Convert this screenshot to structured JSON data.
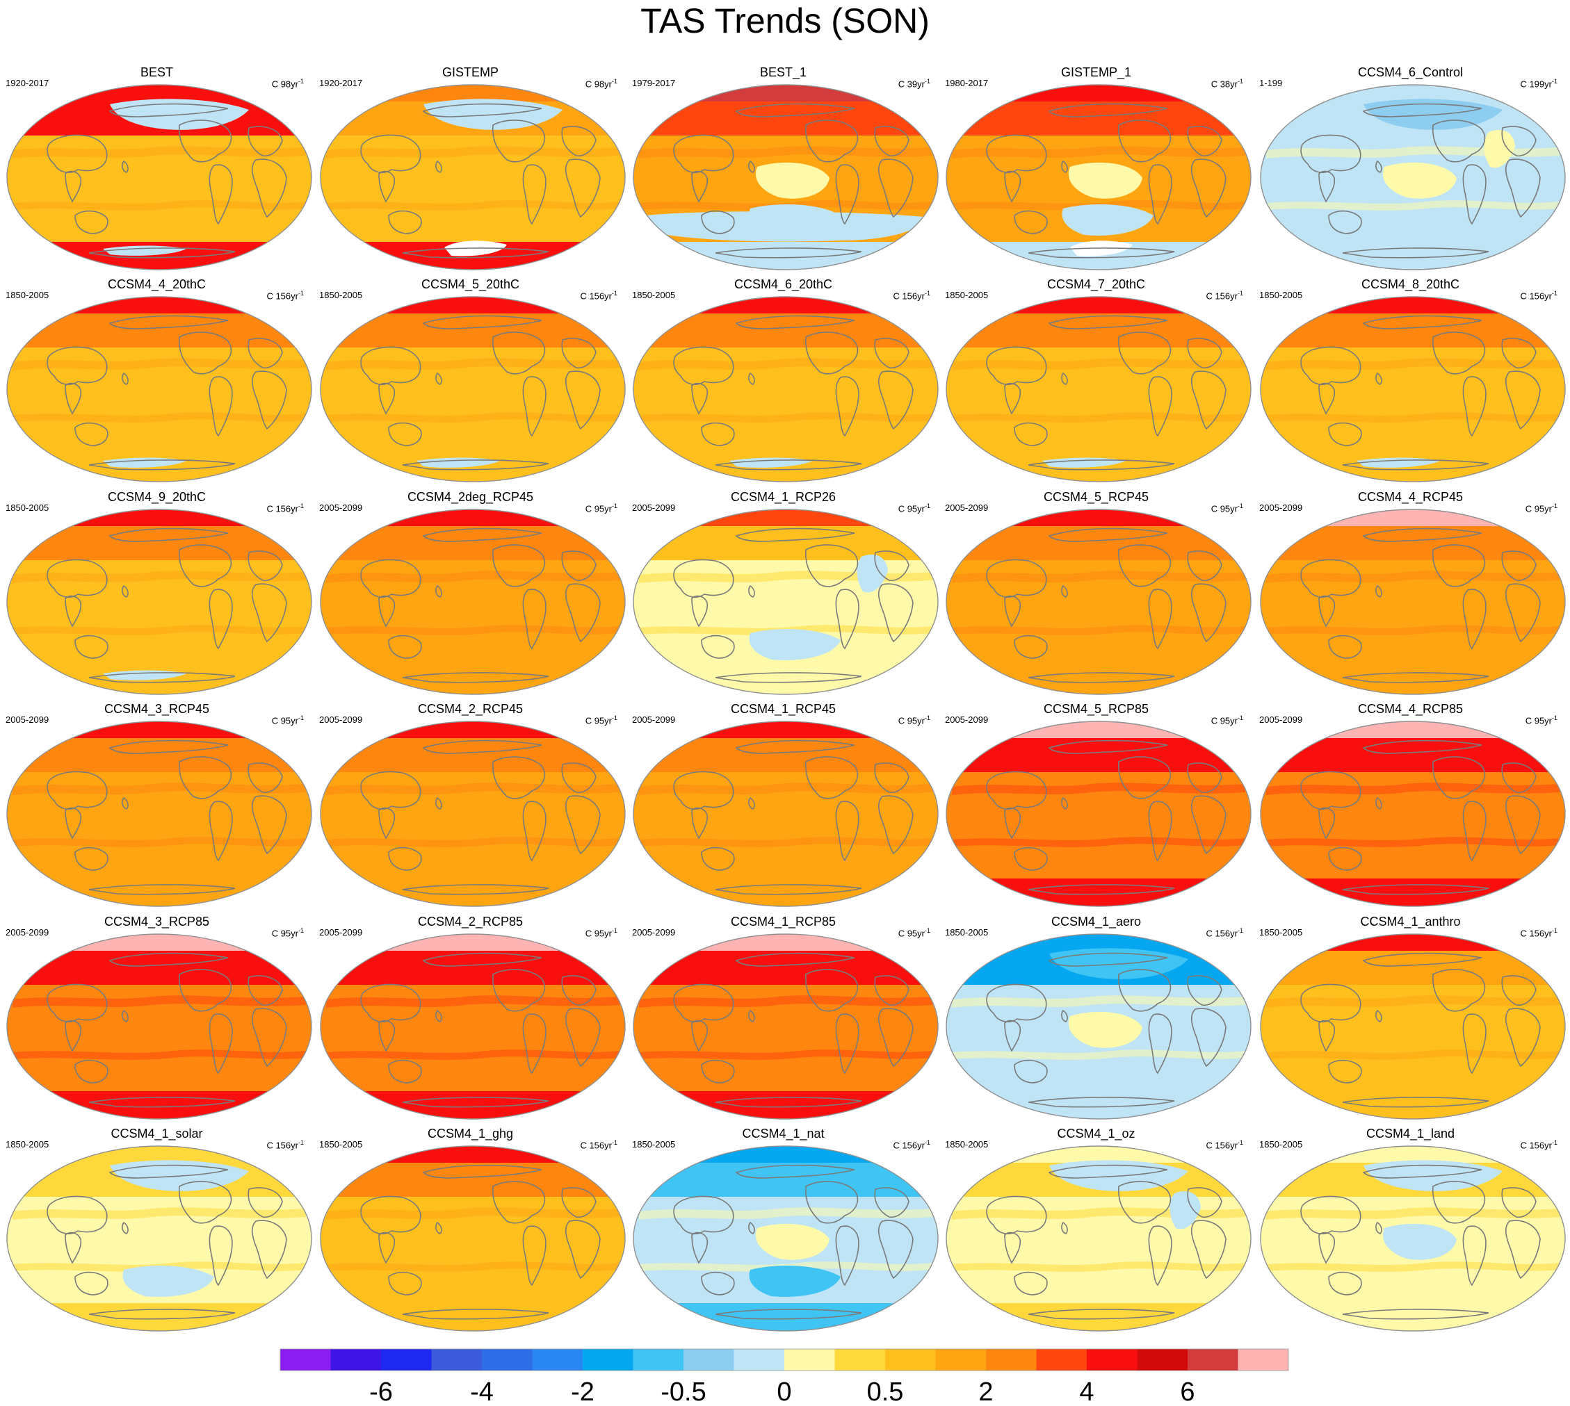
{
  "title": "TAS Trends (SON)",
  "palette": {
    "-9": "#8a1ef0",
    "-8": "#3c14e6",
    "-7": "#1e28f0",
    "-6": "#3c5adc",
    "-5": "#2d6ee6",
    "-4": "#2a87f2",
    "-3": "#05a8f0",
    "-2": "#40c4f4",
    "-1": "#8ccdf0",
    "0": "#bee4f6",
    "1": "#fffaaa",
    "2": "#ffd93c",
    "3": "#ffc01e",
    "4": "#ffa512",
    "5": "#ff870f",
    "6": "#ff460f",
    "7": "#fa0f0f",
    "8": "#d20a0a",
    "9": "#d23c3c",
    "10": "#ffb4b4",
    "ocean_line": "#909090",
    "coast": "#7a7a7a"
  },
  "colorbar": {
    "colors": [
      "#8a1ef0",
      "#3c14e6",
      "#1e28f0",
      "#3c5adc",
      "#2d6ee6",
      "#2a87f2",
      "#05a8f0",
      "#40c4f4",
      "#8ccdf0",
      "#bee4f6",
      "#fffaaa",
      "#ffd93c",
      "#ffc01e",
      "#ffa512",
      "#ff870f",
      "#ff460f",
      "#fa0f0f",
      "#d20a0a",
      "#d23c3c",
      "#ffb4b4"
    ],
    "labels": [
      "-6",
      "-4",
      "-2",
      "-0.5",
      "0",
      "0.5",
      "2",
      "4",
      "6"
    ]
  },
  "panels": [
    {
      "title": "BEST",
      "period": "1920-2017",
      "units": "C 98yr",
      "sup": "-1",
      "base": 3,
      "north": 7,
      "arctic": 7,
      "south": 7,
      "patches": [
        [
          "nhem",
          0
        ],
        [
          "ant",
          0
        ]
      ]
    },
    {
      "title": "GISTEMP",
      "period": "1920-2017",
      "units": "C 98yr",
      "sup": "-1",
      "base": 3,
      "north": 4,
      "arctic": 5,
      "south": 7,
      "patches": [
        [
          "nhem",
          0
        ],
        [
          "missing",
          0
        ]
      ]
    },
    {
      "title": "BEST_1",
      "period": "1979-2017",
      "units": "C 39yr",
      "sup": "-1",
      "base": 4,
      "north": 6,
      "arctic": 9,
      "south": 0,
      "patches": [
        [
          "tpac",
          1
        ],
        [
          "spac",
          0
        ],
        [
          "so",
          0
        ]
      ]
    },
    {
      "title": "GISTEMP_1",
      "period": "1980-2017",
      "units": "C 38yr",
      "sup": "-1",
      "base": 4,
      "north": 6,
      "arctic": 7,
      "south": 0,
      "patches": [
        [
          "tpac",
          1
        ],
        [
          "spac",
          0
        ],
        [
          "missing",
          0
        ]
      ]
    },
    {
      "title": "CCSM4_6_Control",
      "period": "1-199",
      "units": "C 199yr",
      "sup": "-1",
      "base": 0,
      "north": 0,
      "arctic": 0,
      "south": 0,
      "patches": [
        [
          "tpac",
          1
        ],
        [
          "atl",
          1
        ],
        [
          "nhem",
          -1
        ]
      ]
    },
    {
      "title": "CCSM4_4_20thC",
      "period": "1850-2005",
      "units": "C 156yr",
      "sup": "-1",
      "base": 3,
      "north": 5,
      "arctic": 7,
      "south": 3,
      "patches": [
        [
          "ant",
          0
        ]
      ]
    },
    {
      "title": "CCSM4_5_20thC",
      "period": "1850-2005",
      "units": "C 156yr",
      "sup": "-1",
      "base": 3,
      "north": 5,
      "arctic": 7,
      "south": 3,
      "patches": [
        [
          "ant",
          0
        ]
      ]
    },
    {
      "title": "CCSM4_6_20thC",
      "period": "1850-2005",
      "units": "C 156yr",
      "sup": "-1",
      "base": 3,
      "north": 5,
      "arctic": 7,
      "south": 3,
      "patches": [
        [
          "ant",
          0
        ]
      ]
    },
    {
      "title": "CCSM4_7_20thC",
      "period": "1850-2005",
      "units": "C 156yr",
      "sup": "-1",
      "base": 3,
      "north": 5,
      "arctic": 7,
      "south": 3,
      "patches": [
        [
          "ant",
          0
        ]
      ]
    },
    {
      "title": "CCSM4_8_20thC",
      "period": "1850-2005",
      "units": "C 156yr",
      "sup": "-1",
      "base": 3,
      "north": 5,
      "arctic": 7,
      "south": 3,
      "patches": [
        [
          "ant",
          0
        ]
      ]
    },
    {
      "title": "CCSM4_9_20thC",
      "period": "1850-2005",
      "units": "C 156yr",
      "sup": "-1",
      "base": 3,
      "north": 5,
      "arctic": 7,
      "south": 3,
      "patches": [
        [
          "ant",
          0
        ]
      ]
    },
    {
      "title": "CCSM4_2deg_RCP45",
      "period": "2005-2099",
      "units": "C 95yr",
      "sup": "-1",
      "base": 4,
      "north": 5,
      "arctic": 7,
      "south": 4,
      "patches": []
    },
    {
      "title": "CCSM4_1_RCP26",
      "period": "2005-2099",
      "units": "C 95yr",
      "sup": "-1",
      "base": 1,
      "north": 3,
      "arctic": 6,
      "south": 1,
      "patches": [
        [
          "atl",
          0
        ],
        [
          "spac",
          0
        ]
      ]
    },
    {
      "title": "CCSM4_5_RCP45",
      "period": "2005-2099",
      "units": "C 95yr",
      "sup": "-1",
      "base": 4,
      "north": 5,
      "arctic": 7,
      "south": 4,
      "patches": []
    },
    {
      "title": "CCSM4_4_RCP45",
      "period": "2005-2099",
      "units": "C 95yr",
      "sup": "-1",
      "base": 4,
      "north": 5,
      "arctic": 10,
      "south": 4,
      "patches": []
    },
    {
      "title": "CCSM4_3_RCP45",
      "period": "2005-2099",
      "units": "C 95yr",
      "sup": "-1",
      "base": 4,
      "north": 5,
      "arctic": 7,
      "south": 4,
      "patches": []
    },
    {
      "title": "CCSM4_2_RCP45",
      "period": "2005-2099",
      "units": "C 95yr",
      "sup": "-1",
      "base": 4,
      "north": 5,
      "arctic": 7,
      "south": 4,
      "patches": []
    },
    {
      "title": "CCSM4_1_RCP45",
      "period": "2005-2099",
      "units": "C 95yr",
      "sup": "-1",
      "base": 4,
      "north": 5,
      "arctic": 7,
      "south": 4,
      "patches": []
    },
    {
      "title": "CCSM4_5_RCP85",
      "period": "2005-2099",
      "units": "C 95yr",
      "sup": "-1",
      "base": 5,
      "north": 7,
      "arctic": 10,
      "south": 7,
      "patches": []
    },
    {
      "title": "CCSM4_4_RCP85",
      "period": "2005-2099",
      "units": "C 95yr",
      "sup": "-1",
      "base": 5,
      "north": 7,
      "arctic": 10,
      "south": 7,
      "patches": []
    },
    {
      "title": "CCSM4_3_RCP85",
      "period": "2005-2099",
      "units": "C 95yr",
      "sup": "-1",
      "base": 5,
      "north": 7,
      "arctic": 10,
      "south": 7,
      "patches": []
    },
    {
      "title": "CCSM4_2_RCP85",
      "period": "2005-2099",
      "units": "C 95yr",
      "sup": "-1",
      "base": 5,
      "north": 7,
      "arctic": 10,
      "south": 7,
      "patches": []
    },
    {
      "title": "CCSM4_1_RCP85",
      "period": "2005-2099",
      "units": "C 95yr",
      "sup": "-1",
      "base": 5,
      "north": 7,
      "arctic": 10,
      "south": 7,
      "patches": []
    },
    {
      "title": "CCSM4_1_aero",
      "period": "1850-2005",
      "units": "C 156yr",
      "sup": "-1",
      "base": 0,
      "north": -3,
      "arctic": -3,
      "south": 0,
      "patches": [
        [
          "tpac",
          1
        ],
        [
          "nhem",
          -2
        ]
      ]
    },
    {
      "title": "CCSM4_1_anthro",
      "period": "1850-2005",
      "units": "C 156yr",
      "sup": "-1",
      "base": 3,
      "north": 4,
      "arctic": 7,
      "south": 3,
      "patches": []
    },
    {
      "title": "CCSM4_1_solar",
      "period": "1850-2005",
      "units": "C 156yr",
      "sup": "-1",
      "base": 1,
      "north": 2,
      "arctic": 2,
      "south": 2,
      "patches": [
        [
          "nhem",
          0
        ],
        [
          "spac",
          0
        ]
      ]
    },
    {
      "title": "CCSM4_1_ghg",
      "period": "1850-2005",
      "units": "C 156yr",
      "sup": "-1",
      "base": 3,
      "north": 5,
      "arctic": 7,
      "south": 3,
      "patches": []
    },
    {
      "title": "CCSM4_1_nat",
      "period": "1850-2005",
      "units": "C 156yr",
      "sup": "-1",
      "base": 0,
      "north": -2,
      "arctic": -3,
      "south": -2,
      "patches": [
        [
          "tpac",
          1
        ],
        [
          "spac",
          -2
        ]
      ]
    },
    {
      "title": "CCSM4_1_oz",
      "period": "1850-2005",
      "units": "C 156yr",
      "sup": "-1",
      "base": 1,
      "north": 2,
      "arctic": 1,
      "south": 2,
      "patches": [
        [
          "nhem",
          0
        ],
        [
          "atl",
          0
        ]
      ]
    },
    {
      "title": "CCSM4_1_land",
      "period": "1850-2005",
      "units": "C 156yr",
      "sup": "-1",
      "base": 1,
      "north": 2,
      "arctic": 1,
      "south": 1,
      "patches": [
        [
          "nhem",
          0
        ],
        [
          "tpac",
          0
        ]
      ]
    }
  ]
}
